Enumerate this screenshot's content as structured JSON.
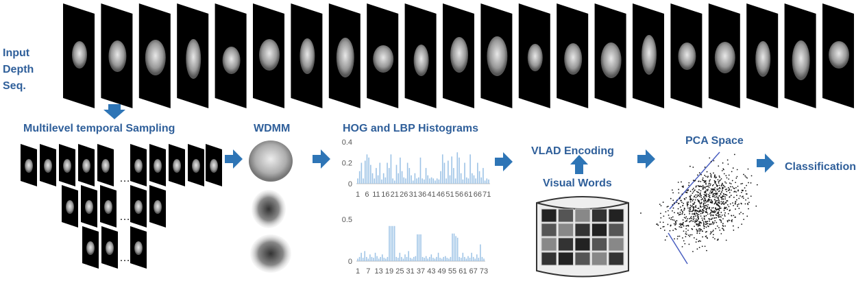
{
  "labels": {
    "input": [
      "Input",
      "Depth",
      "Seq."
    ],
    "sampling": "Multilevel temporal Sampling",
    "wdmm": "WDMM",
    "histograms": "HOG and LBP Histograms",
    "vlad": "VLAD Encoding",
    "words": "Visual Words",
    "pca": "PCA Space",
    "classification": "Classification",
    "ellipsis": [
      "…",
      "…",
      "…"
    ]
  },
  "histograms": [
    {
      "type": "bar",
      "color": "#9dc3e6",
      "ylim": [
        0,
        0.4
      ],
      "yticks": [
        0,
        0.2,
        0.4
      ],
      "xlim": [
        1,
        72
      ],
      "xticks": [
        1,
        6,
        11,
        16,
        21,
        26,
        31,
        36,
        41,
        46,
        51,
        56,
        61,
        66,
        71
      ],
      "values": [
        0.05,
        0.12,
        0.2,
        0.05,
        0.22,
        0.28,
        0.25,
        0.18,
        0.1,
        0.05,
        0.15,
        0.08,
        0.2,
        0.04,
        0.1,
        0.06,
        0.2,
        0.15,
        0.28,
        0.05,
        0.03,
        0.18,
        0.1,
        0.25,
        0.12,
        0.06,
        0.05,
        0.2,
        0.15,
        0.08,
        0.03,
        0.1,
        0.05,
        0.06,
        0.25,
        0.05,
        0.04,
        0.15,
        0.08,
        0.05,
        0.06,
        0.05,
        0.03,
        0.05,
        0.04,
        0.12,
        0.28,
        0.2,
        0.05,
        0.22,
        0.08,
        0.26,
        0.15,
        0.05,
        0.3,
        0.25,
        0.1,
        0.04,
        0.2,
        0.06,
        0.05,
        0.28,
        0.1,
        0.08,
        0.05,
        0.2,
        0.12,
        0.06,
        0.15,
        0.03,
        0.05,
        0.04
      ]
    },
    {
      "type": "bar",
      "color": "#9dc3e6",
      "ylim": [
        0,
        0.5
      ],
      "yticks": [
        0,
        0.5
      ],
      "xlim": [
        1,
        73
      ],
      "xticks": [
        1,
        7,
        13,
        19,
        25,
        31,
        37,
        43,
        49,
        55,
        61,
        67,
        73
      ],
      "values": [
        0.03,
        0.05,
        0.1,
        0.04,
        0.12,
        0.05,
        0.03,
        0.08,
        0.05,
        0.04,
        0.1,
        0.06,
        0.03,
        0.05,
        0.08,
        0.04,
        0.03,
        0.05,
        0.42,
        0.42,
        0.42,
        0.42,
        0.05,
        0.04,
        0.1,
        0.05,
        0.03,
        0.08,
        0.05,
        0.12,
        0.04,
        0.03,
        0.05,
        0.06,
        0.32,
        0.32,
        0.32,
        0.05,
        0.04,
        0.06,
        0.03,
        0.05,
        0.08,
        0.04,
        0.03,
        0.05,
        0.1,
        0.04,
        0.03,
        0.05,
        0.06,
        0.04,
        0.03,
        0.05,
        0.33,
        0.33,
        0.3,
        0.28,
        0.05,
        0.04,
        0.1,
        0.05,
        0.03,
        0.06,
        0.04,
        0.1,
        0.05,
        0.03,
        0.08,
        0.04,
        0.2,
        0.05,
        0.03
      ]
    }
  ]
}
